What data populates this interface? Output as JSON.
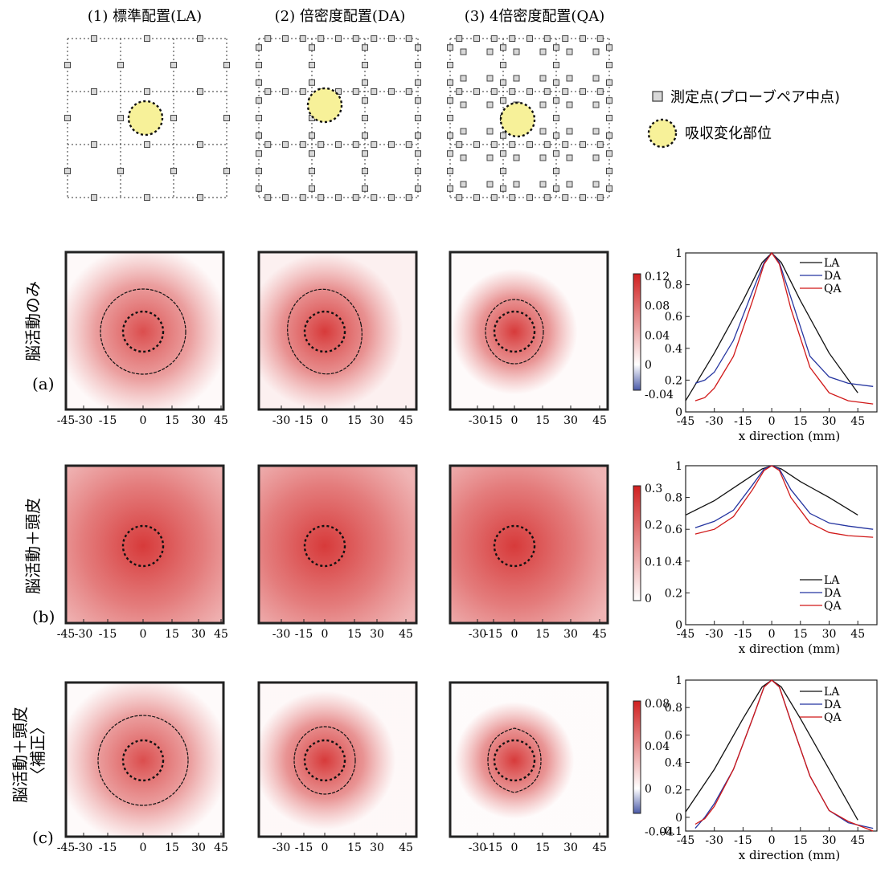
{
  "layouts": [
    {
      "title": "(1) 標準配置(LA)",
      "pitch": 3,
      "extra": "none"
    },
    {
      "title": "(2) 倍密度配置(DA)",
      "pitch": 6,
      "extra": "none"
    },
    {
      "title": "(3) 4倍密度配置(QA)",
      "pitch": 6,
      "extra": "staggered"
    }
  ],
  "legend": {
    "marker_label": "測定点(プローブペア中点)",
    "circle_label": "吸収変化部位",
    "marker_color": "#d8d8d8",
    "circle_color": "#f7f199"
  },
  "rows": [
    {
      "tag": "(a)",
      "label": "脳活動のみ",
      "colorbar_ticks": [
        "0.12",
        "0.08",
        "0.04",
        "0",
        "-0.04"
      ],
      "has_negative": true,
      "contour": true
    },
    {
      "tag": "(b)",
      "label": "脳活動＋頭皮",
      "colorbar_ticks": [
        "0.3",
        "0.2",
        "0.1",
        "0"
      ],
      "has_negative": false,
      "contour": false
    },
    {
      "tag": "(c)",
      "label": "脳活動＋頭皮",
      "label2": "〈補正〉",
      "colorbar_ticks": [
        "0.08",
        "0.04",
        "0",
        "-0.04"
      ],
      "has_negative": true,
      "contour": true
    }
  ],
  "image_axis_ticks": [
    [
      "-45",
      "-30",
      "-15",
      "0",
      "15",
      "30",
      "45"
    ],
    [
      "-30",
      "-15",
      "0",
      "15",
      "30",
      "45"
    ],
    [
      "-30",
      "-15",
      "0",
      "15",
      "30",
      "45"
    ]
  ],
  "colors": {
    "red": "#d73a3a",
    "blue": "#4a5aa8"
  },
  "chart_data": [
    {
      "type": "line",
      "xlabel": "x direction (mm)",
      "xlim": [
        -45,
        55
      ],
      "ylim": [
        0,
        1
      ],
      "x_ticks": [
        "-45",
        "-30",
        "-15",
        "0",
        "15",
        "30",
        "45"
      ],
      "y_ticks": [
        "0",
        "0.2",
        "0.4",
        "0.6",
        "0.8",
        "1"
      ],
      "legend_position": "top-right",
      "series": [
        {
          "name": "LA",
          "color": "#111111",
          "x": [
            -45,
            -30,
            -15,
            -5,
            0,
            5,
            15,
            30,
            45
          ],
          "y": [
            0.07,
            0.37,
            0.7,
            0.94,
            1,
            0.94,
            0.7,
            0.37,
            0.12
          ]
        },
        {
          "name": "DA",
          "color": "#2535a0",
          "x": [
            -40,
            -35,
            -30,
            -20,
            -10,
            -4,
            0,
            4,
            10,
            20,
            30,
            40,
            53
          ],
          "y": [
            0.18,
            0.2,
            0.25,
            0.45,
            0.76,
            0.94,
            1,
            0.94,
            0.72,
            0.35,
            0.22,
            0.18,
            0.16
          ]
        },
        {
          "name": "QA",
          "color": "#d01818",
          "x": [
            -40,
            -35,
            -30,
            -20,
            -10,
            -4,
            0,
            4,
            10,
            20,
            30,
            40,
            53
          ],
          "y": [
            0.07,
            0.09,
            0.15,
            0.35,
            0.7,
            0.93,
            1,
            0.93,
            0.65,
            0.28,
            0.12,
            0.07,
            0.05
          ]
        }
      ]
    },
    {
      "type": "line",
      "xlabel": "x direction (mm)",
      "xlim": [
        -45,
        55
      ],
      "ylim": [
        0,
        1
      ],
      "x_ticks": [
        "-45",
        "-30",
        "-15",
        "0",
        "15",
        "30",
        "45"
      ],
      "y_ticks": [
        "0",
        "0.2",
        "0.4",
        "0.6",
        "0.8",
        "1"
      ],
      "legend_position": "bottom-right",
      "series": [
        {
          "name": "LA",
          "color": "#111111",
          "x": [
            -45,
            -30,
            -15,
            -5,
            0,
            5,
            15,
            30,
            45
          ],
          "y": [
            0.69,
            0.78,
            0.9,
            0.98,
            1,
            0.98,
            0.9,
            0.8,
            0.69
          ]
        },
        {
          "name": "DA",
          "color": "#2535a0",
          "x": [
            -40,
            -30,
            -20,
            -10,
            -4,
            0,
            4,
            10,
            20,
            30,
            40,
            53
          ],
          "y": [
            0.61,
            0.65,
            0.72,
            0.88,
            0.98,
            1,
            0.98,
            0.85,
            0.7,
            0.64,
            0.62,
            0.6
          ]
        },
        {
          "name": "QA",
          "color": "#d01818",
          "x": [
            -40,
            -30,
            -20,
            -10,
            -4,
            0,
            4,
            10,
            20,
            30,
            40,
            53
          ],
          "y": [
            0.57,
            0.6,
            0.68,
            0.85,
            0.97,
            1,
            0.97,
            0.8,
            0.64,
            0.58,
            0.56,
            0.55
          ]
        }
      ]
    },
    {
      "type": "line",
      "xlabel": "x direction (mm)",
      "xlim": [
        -45,
        55
      ],
      "ylim": [
        -0.1,
        1
      ],
      "x_ticks": [
        "-45",
        "-30",
        "-15",
        "0",
        "15",
        "30",
        "45"
      ],
      "y_ticks": [
        "-0.1",
        "0",
        "0.2",
        "0.4",
        "0.6",
        "0.8",
        "1"
      ],
      "legend_position": "top-right",
      "series": [
        {
          "name": "LA",
          "color": "#111111",
          "x": [
            -45,
            -30,
            -15,
            -5,
            0,
            5,
            15,
            30,
            45
          ],
          "y": [
            0.04,
            0.35,
            0.72,
            0.95,
            1,
            0.95,
            0.72,
            0.35,
            -0.02
          ]
        },
        {
          "name": "DA",
          "color": "#2535a0",
          "x": [
            -40,
            -35,
            -30,
            -20,
            -10,
            -4,
            0,
            4,
            10,
            20,
            30,
            40,
            53
          ],
          "y": [
            -0.08,
            0,
            0.1,
            0.35,
            0.72,
            0.95,
            1,
            0.95,
            0.7,
            0.3,
            0.05,
            -0.04,
            -0.08
          ]
        },
        {
          "name": "QA",
          "color": "#d01818",
          "x": [
            -40,
            -35,
            -30,
            -20,
            -10,
            -4,
            0,
            4,
            10,
            20,
            30,
            40,
            53
          ],
          "y": [
            -0.05,
            -0.01,
            0.08,
            0.35,
            0.72,
            0.95,
            1,
            0.95,
            0.7,
            0.3,
            0.05,
            -0.03,
            -0.1
          ]
        }
      ]
    }
  ]
}
